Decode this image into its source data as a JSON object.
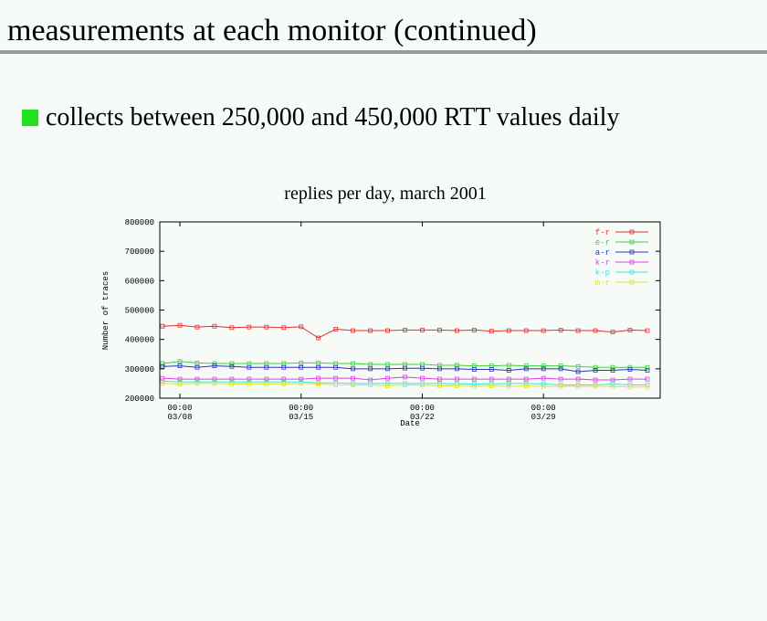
{
  "slide": {
    "title": "measurements at each monitor (continued)",
    "bullet": "collects between 250,000 and 450,000 RTT values daily"
  },
  "chart_data": {
    "type": "line",
    "title": "replies per day, march 2001",
    "x_label": "Date",
    "y_label": "Number of traces",
    "x": [
      7,
      8,
      9,
      10,
      11,
      12,
      13,
      14,
      15,
      16,
      17,
      18,
      19,
      20,
      21,
      22,
      23,
      24,
      25,
      26,
      27,
      28,
      29,
      30,
      31,
      32,
      33,
      34,
      35
    ],
    "xlim": [
      6.84,
      35.74
    ],
    "xticks": [
      {
        "value": 8,
        "label": "00:00\n03/08"
      },
      {
        "value": 15,
        "label": "00:00\n03/15"
      },
      {
        "value": 22,
        "label": "00:00\n03/22"
      },
      {
        "value": 29,
        "label": "00:00\n03/29"
      }
    ],
    "ylim": [
      200000,
      800000
    ],
    "yticks": [
      200000,
      300000,
      400000,
      500000,
      600000,
      700000,
      800000
    ],
    "legend": "top-right",
    "series": [
      {
        "name": "f-r",
        "color": "#e03030",
        "values": [
          445000,
          448000,
          442000,
          445000,
          440000,
          442000,
          442000,
          440000,
          443000,
          405000,
          435000,
          430000,
          430000,
          430000,
          432000,
          432000,
          432000,
          430000,
          432000,
          428000,
          430000,
          430000,
          430000,
          432000,
          430000,
          430000,
          425000,
          432000,
          430000
        ]
      },
      {
        "name": "e-r",
        "color": "#40d040",
        "values": [
          318000,
          325000,
          320000,
          318000,
          318000,
          318000,
          318000,
          318000,
          320000,
          320000,
          318000,
          318000,
          315000,
          315000,
          315000,
          315000,
          312000,
          312000,
          310000,
          310000,
          312000,
          310000,
          310000,
          310000,
          308000,
          305000,
          305000,
          305000,
          305000
        ]
      },
      {
        "name": "a-r",
        "color": "#3030c0",
        "values": [
          308000,
          310000,
          305000,
          310000,
          308000,
          305000,
          305000,
          305000,
          305000,
          305000,
          305000,
          300000,
          300000,
          300000,
          302000,
          302000,
          300000,
          300000,
          298000,
          298000,
          295000,
          300000,
          300000,
          300000,
          290000,
          295000,
          295000,
          298000,
          295000
        ]
      },
      {
        "name": "k-r",
        "color": "#e040e0",
        "values": [
          268000,
          265000,
          265000,
          265000,
          265000,
          265000,
          265000,
          265000,
          265000,
          268000,
          268000,
          268000,
          262000,
          268000,
          272000,
          268000,
          265000,
          265000,
          265000,
          265000,
          265000,
          265000,
          268000,
          265000,
          265000,
          262000,
          262000,
          265000,
          265000
        ]
      },
      {
        "name": "k-p",
        "color": "#40e0e0",
        "values": [
          258000,
          255000,
          255000,
          255000,
          255000,
          255000,
          255000,
          255000,
          255000,
          252000,
          252000,
          250000,
          250000,
          250000,
          250000,
          250000,
          250000,
          248000,
          248000,
          248000,
          250000,
          250000,
          248000,
          245000,
          245000,
          245000,
          248000,
          245000,
          245000
        ]
      },
      {
        "name": "m-r",
        "color": "#e0e040",
        "values": [
          250000,
          248000,
          250000,
          250000,
          248000,
          248000,
          248000,
          248000,
          250000,
          248000,
          245000,
          245000,
          245000,
          242000,
          245000,
          245000,
          242000,
          242000,
          240000,
          242000,
          240000,
          242000,
          240000,
          240000,
          240000,
          240000,
          240000,
          238000,
          238000
        ]
      }
    ]
  }
}
